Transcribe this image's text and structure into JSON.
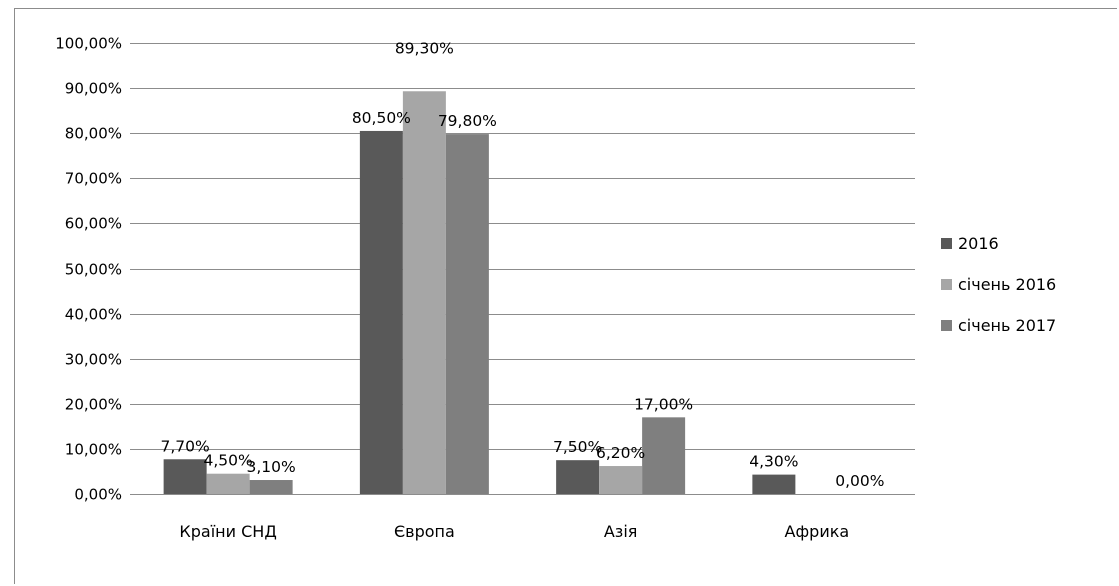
{
  "chart_data": {
    "type": "bar",
    "categories": [
      "Країни СНД",
      "Європа",
      "Азія",
      "Африка"
    ],
    "series": [
      {
        "name": "2016",
        "values": [
          7.7,
          80.5,
          7.5,
          4.3
        ],
        "labels": [
          "7,70%",
          "80,50%",
          "7,50%",
          "4,30%"
        ],
        "color": "#595959"
      },
      {
        "name": "січень 2016",
        "values": [
          4.5,
          89.3,
          6.2,
          null
        ],
        "labels": [
          "4,50%",
          "89,30%",
          "6,20%",
          ""
        ],
        "color": "#a6a6a6"
      },
      {
        "name": "січень 2017",
        "values": [
          3.1,
          79.8,
          17.0,
          0.0
        ],
        "labels": [
          "3,10%",
          "79,80%",
          "17,00%",
          "0,00%"
        ],
        "color": "#7f7f7f"
      }
    ],
    "ylim": [
      0,
      100
    ],
    "yticks": [
      0,
      10,
      20,
      30,
      40,
      50,
      60,
      70,
      80,
      90,
      100
    ],
    "ytick_labels": [
      "0,00%",
      "10,00%",
      "20,00%",
      "30,00%",
      "40,00%",
      "50,00%",
      "60,00%",
      "70,00%",
      "80,00%",
      "90,00%",
      "100,00%"
    ],
    "grid": true,
    "legend": "right",
    "gridline_color": "#8c8c8c"
  }
}
